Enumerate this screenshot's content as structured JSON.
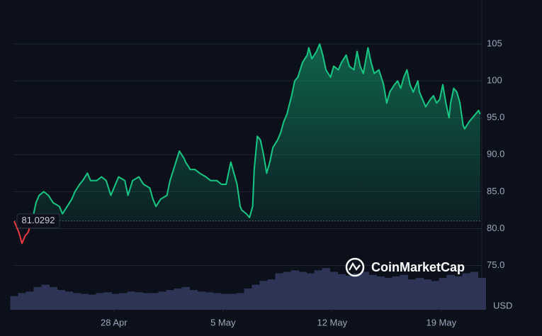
{
  "chart_data": {
    "type": "line",
    "x": [
      21.6,
      21.9,
      22.1,
      22.3,
      22.5,
      22.8,
      23.0,
      23.2,
      23.5,
      23.8,
      24.1,
      24.5,
      24.7,
      25.0,
      25.3,
      25.5,
      25.8,
      26.0,
      26.3,
      26.5,
      26.9,
      27.2,
      27.5,
      27.8,
      28.0,
      28.3,
      28.7,
      28.9,
      29.2,
      29.6,
      29.9,
      30.3,
      30.5,
      30.7,
      31.0,
      31.4,
      31.6,
      31.9,
      32.2,
      32.5,
      32.6,
      32.9,
      33.2,
      33.5,
      33.9,
      34.2,
      34.6,
      34.9,
      35.2,
      35.4,
      35.5,
      35.7,
      35.9,
      36.1,
      36.2,
      36.5,
      36.7,
      36.9,
      37.0,
      37.2,
      37.4,
      37.6,
      37.8,
      38.0,
      38.2,
      38.5,
      38.7,
      38.9,
      39.1,
      39.4,
      39.6,
      39.8,
      40.1,
      40.4,
      40.5,
      40.7,
      41.0,
      41.2,
      41.4,
      41.6,
      41.9,
      42.1,
      42.4,
      42.6,
      42.9,
      43.1,
      43.4,
      43.6,
      43.8,
      44.0,
      44.3,
      44.5,
      44.7,
      45.0,
      45.3,
      45.5,
      45.7,
      46.0,
      46.2,
      46.4,
      46.6,
      46.8,
      47.0,
      47.2,
      47.5,
      47.6,
      47.9,
      48.0,
      48.3,
      48.5,
      48.7,
      48.9,
      49.1,
      49.3,
      49.5,
      49.6,
      49.8,
      50.0,
      50.2,
      50.4,
      50.5,
      50.8,
      51.0,
      51.2,
      51.4,
      51.5
    ],
    "series": [
      {
        "color": "#16c784",
        "below_color": "#ea3943",
        "values": [
          81,
          79.5,
          78,
          79,
          79.5,
          81.5,
          83.5,
          84.5,
          85,
          84.5,
          83.5,
          83,
          82,
          83,
          84,
          85,
          86,
          86.5,
          87.5,
          86.5,
          86.5,
          87,
          86.5,
          84.5,
          85.5,
          87,
          86.5,
          84.5,
          86.5,
          87,
          86,
          85.5,
          84,
          83,
          84,
          84.5,
          86.5,
          88.5,
          90.5,
          89.5,
          89,
          88,
          88,
          87.5,
          87,
          86.5,
          86.5,
          86,
          86,
          88,
          89,
          87.5,
          86,
          83,
          82.5,
          82,
          81.5,
          83,
          88,
          92.5,
          92,
          90,
          87.5,
          89,
          91,
          92,
          93,
          94.5,
          95.5,
          98,
          100,
          100.5,
          102.5,
          103.5,
          104.5,
          103,
          104,
          105,
          103.5,
          101.5,
          100.5,
          102,
          101.5,
          102.5,
          103.5,
          102,
          101.5,
          104,
          102,
          101,
          104.5,
          102.5,
          101,
          101.5,
          99.5,
          97,
          98.5,
          99.5,
          100,
          99,
          100.5,
          101.5,
          99.5,
          98.5,
          100,
          98.5,
          97,
          96.5,
          97.5,
          98,
          97,
          97.5,
          99.5,
          97,
          95,
          97,
          99,
          98.5,
          97,
          94,
          93.5,
          94.5,
          95,
          95.5,
          96,
          95.5
        ]
      }
    ],
    "baseline": 81.0292,
    "xlim": [
      21.6,
      51.6
    ],
    "xticks": [
      {
        "value": 28,
        "label": "28 Apr"
      },
      {
        "value": 35,
        "label": "5 May"
      },
      {
        "value": 42,
        "label": "12 May"
      },
      {
        "value": 49,
        "label": "19 May"
      }
    ],
    "ylim": [
      69,
      110
    ],
    "yticks": [
      {
        "value": 75,
        "label": "75.0"
      },
      {
        "value": 80,
        "label": "80.0"
      },
      {
        "value": 85,
        "label": "85.0"
      },
      {
        "value": 90,
        "label": "90.0"
      },
      {
        "value": 95,
        "label": "95.0"
      },
      100,
      105
    ],
    "grid": true,
    "y_unit": "USD",
    "watermark": "CoinMarketCap",
    "volume": {
      "color": "#2e3455",
      "x": [
        21.6,
        22.1,
        22.6,
        23.1,
        23.6,
        24.1,
        24.6,
        25.1,
        25.6,
        26.1,
        26.6,
        27.1,
        27.6,
        28.1,
        28.6,
        29.1,
        29.6,
        30.1,
        30.6,
        31.1,
        31.6,
        32.1,
        32.6,
        33.1,
        33.6,
        34.1,
        34.6,
        35.1,
        35.6,
        36.1,
        36.6,
        37.1,
        37.6,
        38.1,
        38.6,
        39.1,
        39.6,
        40.1,
        40.6,
        41.1,
        41.6,
        42.1,
        42.6,
        43.1,
        43.6,
        44.1,
        44.6,
        45.1,
        45.6,
        46.1,
        46.6,
        47.1,
        47.6,
        48.1,
        48.6,
        49.1,
        49.6,
        50.1,
        50.6,
        51.1,
        51.6
      ],
      "values": [
        18,
        22,
        24,
        30,
        33,
        30,
        26,
        24,
        22,
        21,
        20,
        22,
        23,
        21,
        22,
        24,
        23,
        22,
        22,
        24,
        26,
        28,
        30,
        26,
        24,
        23,
        22,
        21,
        21,
        22,
        28,
        33,
        38,
        40,
        48,
        50,
        52,
        50,
        48,
        52,
        55,
        50,
        47,
        45,
        48,
        50,
        46,
        44,
        42,
        44,
        46,
        40,
        42,
        40,
        38,
        42,
        46,
        44,
        48,
        50,
        42
      ]
    },
    "y2lim": [
      0,
      100
    ]
  }
}
